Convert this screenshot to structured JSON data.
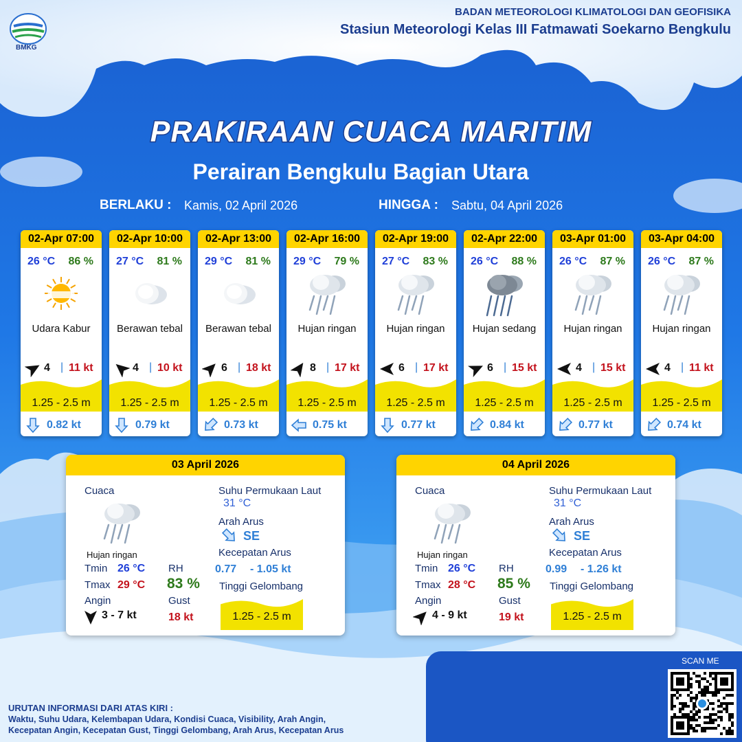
{
  "header": {
    "logo": "BMKG",
    "org": "BADAN METEOROLOGI KLIMATOLOGI DAN GEOFISIKA",
    "station": "Stasiun Meteorologi Kelas III Fatmawati Soekarno Bengkulu"
  },
  "title": "PRAKIRAAN CUACA MARITIM",
  "subtitle": "Perairan Bengkulu Bagian Utara",
  "validity": {
    "from_label": "BERLAKU :",
    "from": "Kamis, 02 April 2026",
    "to_label": "HINGGA :",
    "to": "Sabtu, 04 April 2026"
  },
  "forecast": [
    {
      "time": "02-Apr 07:00",
      "temp": "26 °C",
      "rh": "86 %",
      "weather": "Udara Kabur",
      "wind": "4",
      "gust": "11 kt",
      "wave": "1.25 - 2.5 m",
      "current": "0.82 kt"
    },
    {
      "time": "02-Apr 10:00",
      "temp": "27 °C",
      "rh": "81 %",
      "weather": "Berawan tebal",
      "wind": "4",
      "gust": "10 kt",
      "wave": "1.25 - 2.5 m",
      "current": "0.79 kt"
    },
    {
      "time": "02-Apr 13:00",
      "temp": "29 °C",
      "rh": "81 %",
      "weather": "Berawan tebal",
      "wind": "6",
      "gust": "18 kt",
      "wave": "1.25 - 2.5 m",
      "current": "0.73 kt"
    },
    {
      "time": "02-Apr 16:00",
      "temp": "29 °C",
      "rh": "79 %",
      "weather": "Hujan ringan",
      "wind": "8",
      "gust": "17 kt",
      "wave": "1.25 - 2.5 m",
      "current": "0.75 kt"
    },
    {
      "time": "02-Apr 19:00",
      "temp": "27 °C",
      "rh": "83 %",
      "weather": "Hujan ringan",
      "wind": "6",
      "gust": "17 kt",
      "wave": "1.25 - 2.5 m",
      "current": "0.77 kt"
    },
    {
      "time": "02-Apr 22:00",
      "temp": "26 °C",
      "rh": "88 %",
      "weather": "Hujan sedang",
      "wind": "6",
      "gust": "15 kt",
      "wave": "1.25 - 2.5 m",
      "current": "0.84 kt"
    },
    {
      "time": "03-Apr 01:00",
      "temp": "26 °C",
      "rh": "87 %",
      "weather": "Hujan ringan",
      "wind": "4",
      "gust": "15 kt",
      "wave": "1.25 - 2.5 m",
      "current": "0.77 kt"
    },
    {
      "time": "03-Apr 04:00",
      "temp": "26 °C",
      "rh": "87 %",
      "weather": "Hujan ringan",
      "wind": "4",
      "gust": "11 kt",
      "wave": "1.25 - 2.5 m",
      "current": "0.74 kt"
    }
  ],
  "daily": [
    {
      "date": "03 April 2026",
      "weather_label": "Cuaca",
      "weather": "Hujan ringan",
      "tmin_label": "Tmin",
      "tmin": "26 °C",
      "tmax_label": "Tmax",
      "tmax": "29 °C",
      "wind_label": "Angin",
      "wind": "3 - 7 kt",
      "rh_label": "RH",
      "rh": "83 %",
      "gust_label": "Gust",
      "gust": "18 kt",
      "sst_label": "Suhu Permukaan Laut",
      "sst": "31 °C",
      "current_dir_label": "Arah Arus",
      "current_dir": "SE",
      "current_speed_label": "Kecepatan Arus",
      "current_speed_min": "0.77",
      "current_speed_max": "- 1.05 kt",
      "wave_label": "Tinggi Gelombang",
      "wave": "1.25 - 2.5 m"
    },
    {
      "date": "04 April 2026",
      "weather_label": "Cuaca",
      "weather": "Hujan ringan",
      "tmin_label": "Tmin",
      "tmin": "26 °C",
      "tmax_label": "Tmax",
      "tmax": "28 °C",
      "wind_label": "Angin",
      "wind": "4 - 9 kt",
      "rh_label": "RH",
      "rh": "85 %",
      "gust_label": "Gust",
      "gust": "19 kt",
      "sst_label": "Suhu Permukaan Laut",
      "sst": "31 °C",
      "current_dir_label": "Arah Arus",
      "current_dir": "SE",
      "current_speed_label": "Kecepatan Arus",
      "current_speed_min": "0.99",
      "current_speed_max": "- 1.26 kt",
      "wave_label": "Tinggi Gelombang",
      "wave": "1.25 - 2.5 m"
    }
  ],
  "footer": {
    "scan": "SCAN ME",
    "legend_title": "URUTAN INFORMASI DARI ATAS KIRI :",
    "legend_lines": [
      "Waktu, Suhu Udara, Kelembapan Udara, Kondisi Cuaca, Visibility, Arah Angin,",
      "Kecepatan Angin, Kecepatan Gust, Tinggi Gelombang, Arah Arus, Kecepatan Arus"
    ]
  }
}
